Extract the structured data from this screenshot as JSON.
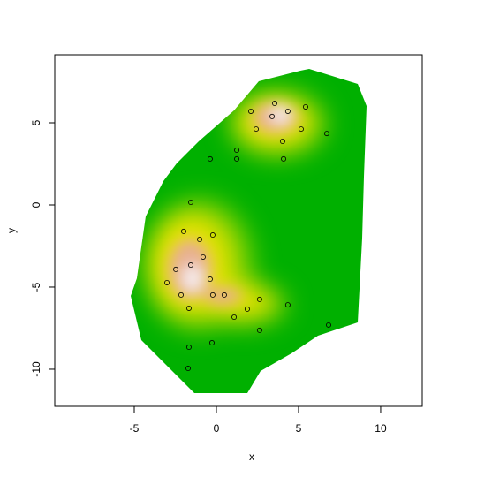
{
  "chart_data": {
    "type": "scatter",
    "x_label": "x",
    "y_label": "y",
    "x": [
      3.55,
      2.1,
      4.35,
      5.43,
      3.39,
      2.42,
      5.16,
      6.72,
      4.03,
      1.24,
      -0.38,
      1.24,
      4.09,
      -1.56,
      -1.99,
      -0.22,
      -1.02,
      -0.81,
      -1.56,
      -2.47,
      -0.38,
      -3.01,
      -0.22,
      0.48,
      -2.15,
      1.88,
      2.63,
      -1.67,
      1.08,
      4.35,
      2.63,
      6.83,
      -1.67,
      -0.27,
      -1.72
    ],
    "y": [
      6.18,
      5.7,
      5.7,
      5.97,
      5.38,
      4.62,
      4.62,
      4.35,
      3.87,
      3.33,
      2.8,
      2.8,
      2.8,
      0.16,
      -1.61,
      -1.83,
      -2.1,
      -3.17,
      -3.66,
      -3.92,
      -4.52,
      -4.73,
      -5.48,
      -5.48,
      -5.48,
      -6.34,
      -5.75,
      -6.29,
      -6.83,
      -6.08,
      -7.63,
      -7.31,
      -8.66,
      -8.39,
      -9.95
    ],
    "color": "#000000",
    "xlim": [
      -9.84,
      12.53
    ],
    "ylim": [
      -12.26,
      9.14
    ],
    "xticks": [
      -5,
      0,
      5,
      10
    ],
    "yticks": [
      -10,
      -5,
      0,
      5
    ]
  }
}
